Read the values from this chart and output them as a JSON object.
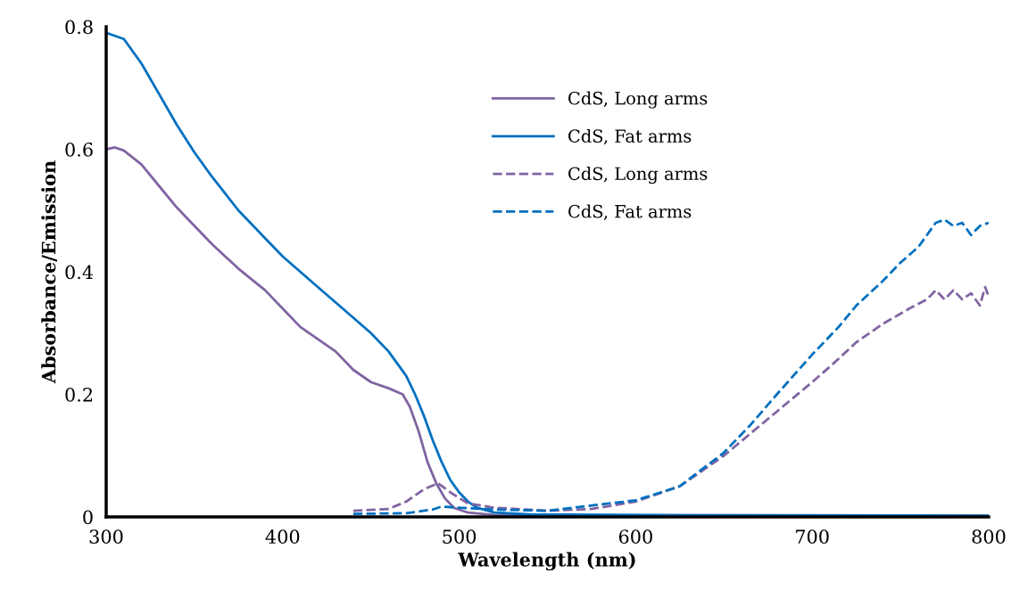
{
  "chart_data": {
    "type": "line",
    "xlabel": "Wavelength (nm)",
    "ylabel": "Absorbance/Emission",
    "xlim": [
      300,
      800
    ],
    "ylim": [
      0,
      0.8
    ],
    "xticks": [
      300,
      400,
      500,
      600,
      700,
      800
    ],
    "yticks": [
      0,
      0.2,
      0.4,
      0.6,
      0.8
    ],
    "grid": false,
    "legend": "top",
    "marker": "none",
    "series": [
      {
        "name": "CdS, Long arms",
        "color": "#8064a2",
        "line_style": "solid",
        "x": [
          300,
          305,
          310,
          320,
          330,
          340,
          350,
          360,
          375,
          390,
          400,
          410,
          420,
          430,
          440,
          450,
          460,
          468,
          472,
          477,
          482,
          487,
          492,
          497,
          505,
          520,
          800
        ],
        "values": [
          0.6,
          0.603,
          0.598,
          0.575,
          0.54,
          0.505,
          0.475,
          0.445,
          0.405,
          0.37,
          0.34,
          0.31,
          0.29,
          0.27,
          0.24,
          0.22,
          0.21,
          0.2,
          0.18,
          0.14,
          0.09,
          0.055,
          0.03,
          0.015,
          0.007,
          0.003,
          0.002
        ]
      },
      {
        "name": "CdS, Fat arms",
        "color": "#0070c0",
        "line_style": "solid",
        "x": [
          300,
          310,
          320,
          330,
          340,
          350,
          360,
          375,
          390,
          400,
          420,
          440,
          450,
          460,
          470,
          475,
          480,
          485,
          490,
          495,
          500,
          505,
          510,
          520,
          540,
          600,
          800
        ],
        "values": [
          0.79,
          0.78,
          0.74,
          0.69,
          0.64,
          0.595,
          0.555,
          0.5,
          0.455,
          0.425,
          0.375,
          0.325,
          0.3,
          0.27,
          0.23,
          0.2,
          0.165,
          0.125,
          0.09,
          0.06,
          0.04,
          0.025,
          0.015,
          0.007,
          0.004,
          0.003,
          0.002
        ]
      },
      {
        "name": "CdS, Long arms",
        "color": "#8064a2",
        "line_style": "dashed",
        "x": [
          440,
          460,
          470,
          480,
          488,
          495,
          505,
          520,
          550,
          575,
          600,
          625,
          650,
          675,
          700,
          710,
          725,
          740,
          755,
          765,
          770,
          775,
          780,
          785,
          790,
          795,
          798,
          800
        ],
        "values": [
          0.01,
          0.013,
          0.025,
          0.045,
          0.055,
          0.04,
          0.022,
          0.015,
          0.01,
          0.013,
          0.025,
          0.05,
          0.1,
          0.16,
          0.22,
          0.245,
          0.285,
          0.315,
          0.34,
          0.355,
          0.37,
          0.355,
          0.37,
          0.355,
          0.365,
          0.345,
          0.375,
          0.36
        ]
      },
      {
        "name": "CdS, Fat arms",
        "color": "#0070c0",
        "line_style": "dashed",
        "x": [
          440,
          470,
          485,
          490,
          500,
          520,
          550,
          600,
          625,
          650,
          665,
          680,
          700,
          715,
          725,
          740,
          750,
          760,
          765,
          770,
          775,
          780,
          785,
          790,
          795,
          800
        ],
        "values": [
          0.005,
          0.006,
          0.012,
          0.017,
          0.015,
          0.012,
          0.01,
          0.027,
          0.05,
          0.105,
          0.15,
          0.2,
          0.265,
          0.31,
          0.345,
          0.385,
          0.415,
          0.44,
          0.46,
          0.48,
          0.485,
          0.475,
          0.48,
          0.46,
          0.475,
          0.48
        ]
      }
    ]
  }
}
